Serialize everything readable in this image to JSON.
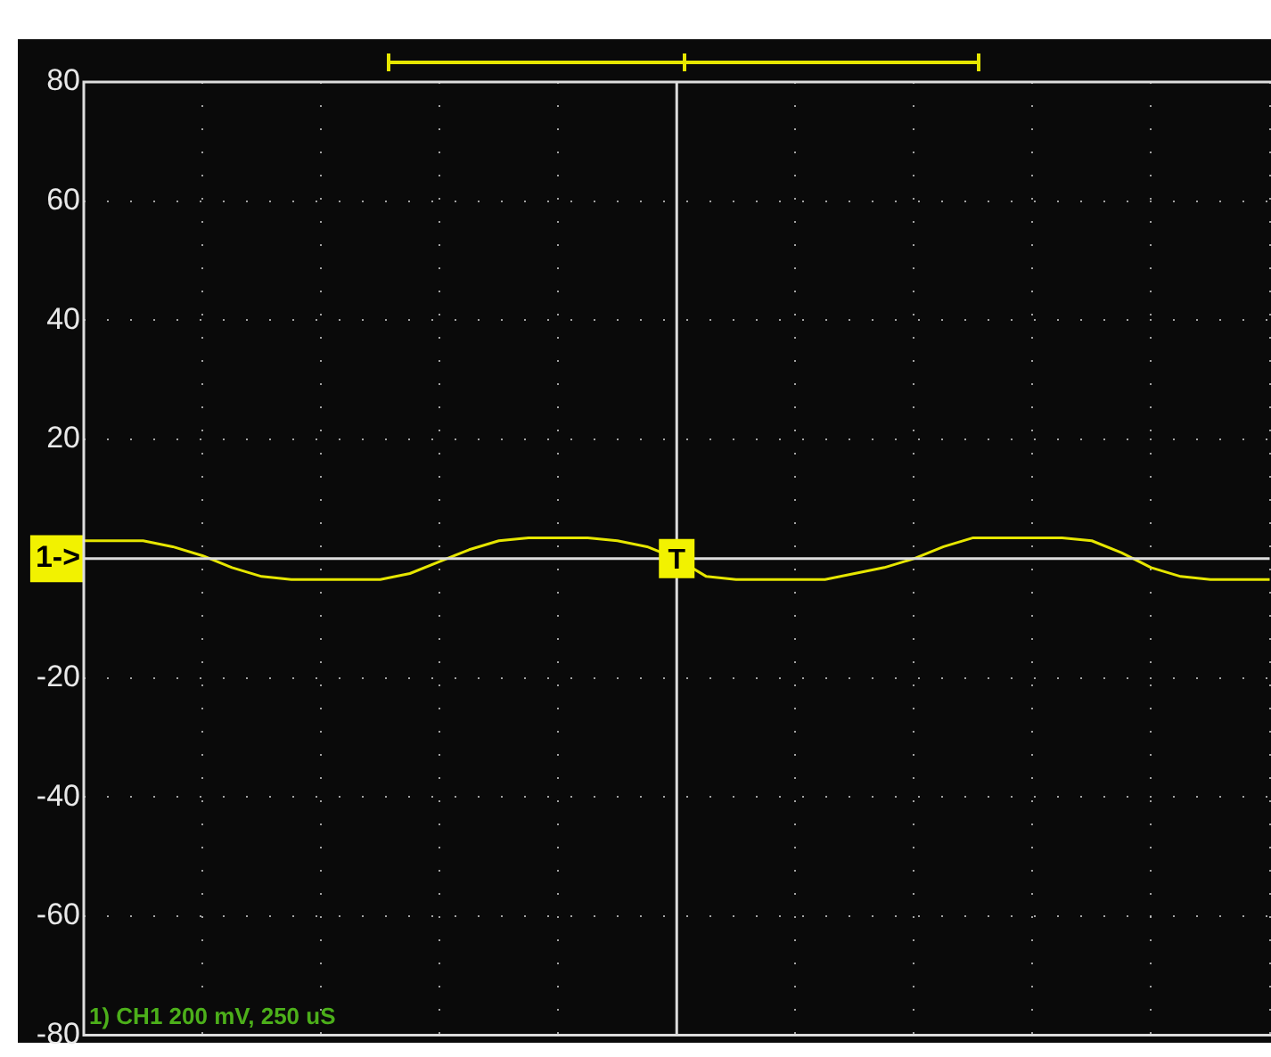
{
  "chart_data": {
    "type": "line",
    "categories": [
      null,
      null,
      null,
      null,
      null,
      null,
      null,
      null,
      null,
      null,
      null,
      null,
      null,
      null,
      null,
      null,
      null,
      null,
      null,
      null,
      null,
      null,
      null,
      null,
      null,
      null,
      null,
      null,
      null,
      null,
      null,
      null,
      null,
      null,
      null,
      null,
      null,
      null,
      null,
      null,
      null
    ],
    "series": [
      {
        "color": "#e6e600",
        "values": [
          3,
          3,
          3,
          2,
          0.5,
          -1.5,
          -3,
          -3.5,
          -3.5,
          -3.5,
          -3.5,
          -2.5,
          -0.5,
          1.5,
          3,
          3.5,
          3.5,
          3.5,
          3,
          2,
          0,
          -3,
          -3.5,
          -3.5,
          -3.5,
          -3.5,
          -2.5,
          -1.5,
          0,
          2,
          3.5,
          3.5,
          3.5,
          3.5,
          3,
          1,
          -1.5,
          -3,
          -3.5,
          -3.5,
          -3.5
        ]
      }
    ],
    "ylim": [
      -80,
      80
    ],
    "yticks": [
      80,
      60,
      40,
      20,
      {
        "value": 0,
        "label": "1->"
      },
      -20,
      -40,
      -60,
      -80
    ],
    "grid": true,
    "legend": false,
    "marker": "none",
    "line_style": "solid",
    "annotations": [
      "T",
      "1) CH1 200 mV, 250 uS"
    ]
  }
}
